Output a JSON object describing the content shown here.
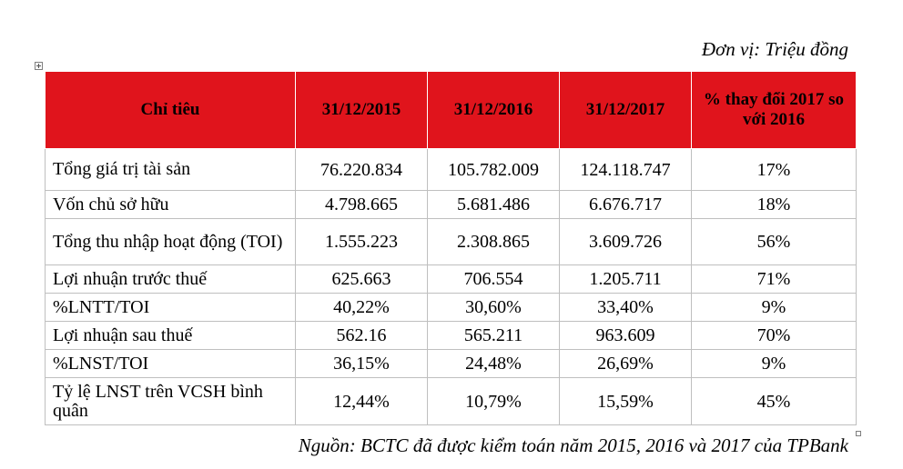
{
  "unit_note": "Đơn vị: Triệu đồng",
  "table": {
    "headers": [
      "Chỉ tiêu",
      "31/12/2015",
      "31/12/2016",
      "31/12/2017",
      "% thay đổi 2017 so với 2016"
    ],
    "rows": [
      [
        "Tổng giá trị tài sản",
        "76.220.834",
        "105.782.009",
        "124.118.747",
        "17%"
      ],
      [
        "Vốn chủ sở hữu",
        "4.798.665",
        "5.681.486",
        "6.676.717",
        "18%"
      ],
      [
        "Tổng thu nhập hoạt động (TOI)",
        "1.555.223",
        "2.308.865",
        "3.609.726",
        "56%"
      ],
      [
        "Lợi nhuận trước thuế",
        "625.663",
        "706.554",
        "1.205.711",
        "71%"
      ],
      [
        "%LNTT/TOI",
        "40,22%",
        "30,60%",
        "33,40%",
        "9%"
      ],
      [
        "Lợi nhuận sau thuế",
        "562.16",
        "565.211",
        "963.609",
        "70%"
      ],
      [
        "%LNST/TOI",
        "36,15%",
        "24,48%",
        "26,69%",
        "9%"
      ],
      [
        "Tỷ lệ LNST trên VCSH bình quân",
        "12,44%",
        "10,79%",
        "15,59%",
        "45%"
      ]
    ]
  },
  "source_note": "Nguồn: BCTC đã được kiểm toán năm 2015, 2016 và 2017 của TPBank",
  "colors": {
    "header_bg": "#e0141c",
    "grid": "#bfbfbf"
  }
}
